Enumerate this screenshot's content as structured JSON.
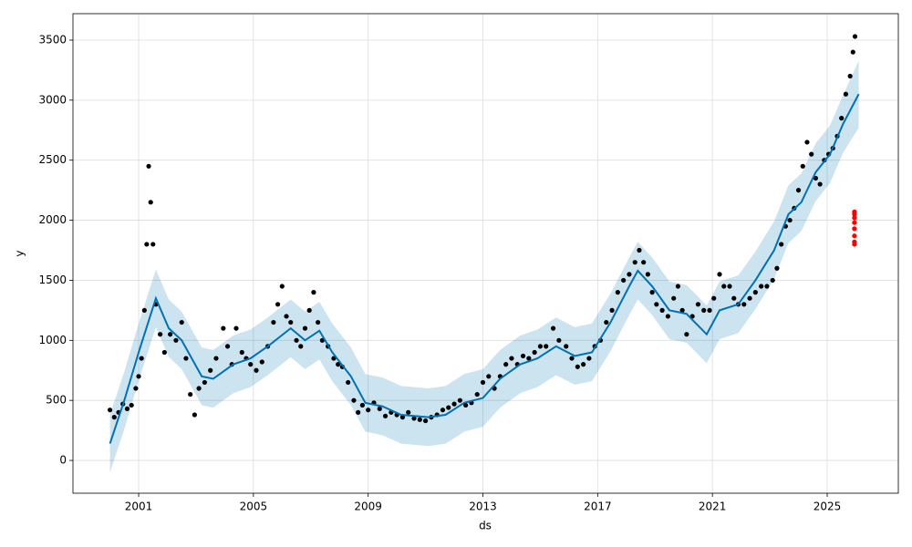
{
  "chart_data": {
    "type": "line",
    "xlabel": "ds",
    "ylabel": "y",
    "xlim": [
      1998.71,
      2027.48
    ],
    "xticks": [
      2001,
      2005,
      2009,
      2013,
      2017,
      2021,
      2025
    ],
    "ylim": [
      -273,
      3720
    ],
    "yticks": [
      0,
      500,
      1000,
      1500,
      2000,
      2500,
      3000,
      3500
    ],
    "grid": true,
    "observed": {
      "color": "#000000",
      "x": [
        2000.0,
        2000.15,
        2000.3,
        2000.45,
        2000.6,
        2000.75,
        2000.9,
        2001.0,
        2001.1,
        2001.2,
        2001.28,
        2001.35,
        2001.42,
        2001.5,
        2001.6,
        2001.75,
        2001.9,
        2002.1,
        2002.3,
        2002.5,
        2002.65,
        2002.8,
        2002.95,
        2003.1,
        2003.3,
        2003.5,
        2003.7,
        2003.95,
        2004.1,
        2004.25,
        2004.4,
        2004.6,
        2004.75,
        2004.9,
        2005.1,
        2005.3,
        2005.5,
        2005.7,
        2005.85,
        2006.0,
        2006.15,
        2006.3,
        2006.5,
        2006.65,
        2006.8,
        2006.95,
        2007.1,
        2007.25,
        2007.4,
        2007.6,
        2007.8,
        2007.95,
        2008.1,
        2008.3,
        2008.5,
        2008.65,
        2008.8,
        2009.0,
        2009.2,
        2009.4,
        2009.6,
        2009.8,
        2010.0,
        2010.2,
        2010.4,
        2010.6,
        2010.8,
        2011.0,
        2011.2,
        2011.4,
        2011.6,
        2011.8,
        2012.0,
        2012.2,
        2012.4,
        2012.6,
        2012.8,
        2013.0,
        2013.2,
        2013.4,
        2013.6,
        2013.8,
        2014.0,
        2014.2,
        2014.4,
        2014.6,
        2014.8,
        2015.0,
        2015.2,
        2015.45,
        2015.65,
        2015.9,
        2016.1,
        2016.3,
        2016.5,
        2016.7,
        2016.9,
        2017.1,
        2017.3,
        2017.5,
        2017.7,
        2017.9,
        2018.1,
        2018.3,
        2018.45,
        2018.6,
        2018.75,
        2018.9,
        2019.05,
        2019.25,
        2019.45,
        2019.65,
        2019.8,
        2019.95,
        2020.1,
        2020.3,
        2020.5,
        2020.7,
        2020.9,
        2021.05,
        2021.25,
        2021.4,
        2021.6,
        2021.75,
        2021.9,
        2022.1,
        2022.3,
        2022.5,
        2022.7,
        2022.9,
        2023.1,
        2023.25,
        2023.4,
        2023.55,
        2023.7,
        2023.85,
        2024.0,
        2024.15,
        2024.3,
        2024.45,
        2024.6,
        2024.75,
        2024.9,
        2025.05,
        2025.2,
        2025.35,
        2025.5,
        2025.65,
        2025.8,
        2025.9,
        2025.97
      ],
      "values": [
        420,
        360,
        400,
        470,
        430,
        460,
        600,
        700,
        850,
        1250,
        1800,
        2450,
        2150,
        1800,
        1300,
        1050,
        900,
        1050,
        1000,
        1150,
        850,
        550,
        380,
        600,
        650,
        750,
        850,
        1100,
        950,
        800,
        1100,
        900,
        850,
        800,
        750,
        820,
        950,
        1150,
        1300,
        1450,
        1200,
        1150,
        1000,
        950,
        1100,
        1250,
        1400,
        1150,
        1000,
        950,
        850,
        800,
        780,
        650,
        500,
        400,
        460,
        420,
        480,
        430,
        370,
        400,
        380,
        360,
        400,
        350,
        340,
        330,
        360,
        380,
        420,
        440,
        470,
        500,
        460,
        480,
        550,
        650,
        700,
        600,
        700,
        800,
        850,
        800,
        870,
        850,
        900,
        950,
        950,
        1100,
        1000,
        950,
        850,
        780,
        800,
        850,
        950,
        1000,
        1150,
        1250,
        1400,
        1500,
        1550,
        1650,
        1750,
        1650,
        1550,
        1400,
        1300,
        1250,
        1200,
        1350,
        1450,
        1250,
        1050,
        1200,
        1300,
        1250,
        1250,
        1350,
        1550,
        1450,
        1450,
        1350,
        1300,
        1300,
        1350,
        1400,
        1450,
        1450,
        1500,
        1600,
        1800,
        1950,
        2000,
        2100,
        2250,
        2450,
        2650,
        2550,
        2350,
        2300,
        2500,
        2550,
        2600,
        2700,
        2850,
        3050,
        3200,
        3400,
        3530
      ]
    },
    "forecast": {
      "color": "#0072b2",
      "band_color": "#0072b2",
      "x": [
        2000.0,
        2000.5,
        2001.0,
        2001.6,
        2002.05,
        2002.5,
        2003.2,
        2003.6,
        2004.3,
        2004.9,
        2005.5,
        2006.3,
        2006.8,
        2007.3,
        2007.75,
        2008.4,
        2008.9,
        2009.5,
        2010.15,
        2011.1,
        2011.7,
        2012.35,
        2013.0,
        2013.6,
        2014.3,
        2014.9,
        2015.55,
        2016.2,
        2016.8,
        2017.45,
        2018.1,
        2018.4,
        2018.9,
        2019.5,
        2020.1,
        2020.8,
        2021.25,
        2021.9,
        2022.5,
        2023.15,
        2023.65,
        2024.1,
        2024.6,
        2025.1,
        2025.55,
        2026.1
      ],
      "values": [
        140,
        500,
        900,
        1350,
        1100,
        1000,
        700,
        680,
        800,
        850,
        950,
        1100,
        1000,
        1080,
        900,
        700,
        480,
        450,
        380,
        360,
        380,
        480,
        520,
        680,
        800,
        850,
        950,
        870,
        900,
        1150,
        1450,
        1580,
        1450,
        1250,
        1220,
        1050,
        1250,
        1300,
        1500,
        1750,
        2050,
        2150,
        2400,
        2550,
        2800,
        3050
      ],
      "upper": [
        380,
        740,
        1140,
        1590,
        1340,
        1240,
        940,
        920,
        1040,
        1090,
        1190,
        1340,
        1240,
        1320,
        1140,
        940,
        720,
        690,
        620,
        600,
        620,
        720,
        760,
        920,
        1040,
        1090,
        1190,
        1110,
        1140,
        1390,
        1690,
        1820,
        1690,
        1490,
        1460,
        1290,
        1490,
        1540,
        1740,
        1990,
        2290,
        2390,
        2640,
        2790,
        3040,
        3330
      ],
      "lower": [
        -100,
        260,
        660,
        1110,
        860,
        760,
        460,
        440,
        560,
        610,
        710,
        860,
        760,
        840,
        660,
        460,
        240,
        210,
        140,
        120,
        140,
        240,
        280,
        440,
        560,
        610,
        710,
        630,
        660,
        910,
        1210,
        1340,
        1210,
        1010,
        980,
        810,
        1010,
        1060,
        1260,
        1510,
        1810,
        1910,
        2160,
        2310,
        2560,
        2770
      ]
    },
    "test": {
      "color": "#ff0000",
      "x": [
        2025.95,
        2025.95,
        2025.95,
        2025.95,
        2025.95,
        2025.95,
        2025.95,
        2025.95
      ],
      "values": [
        1800,
        1820,
        1870,
        1930,
        1980,
        2020,
        2050,
        2070
      ]
    }
  }
}
